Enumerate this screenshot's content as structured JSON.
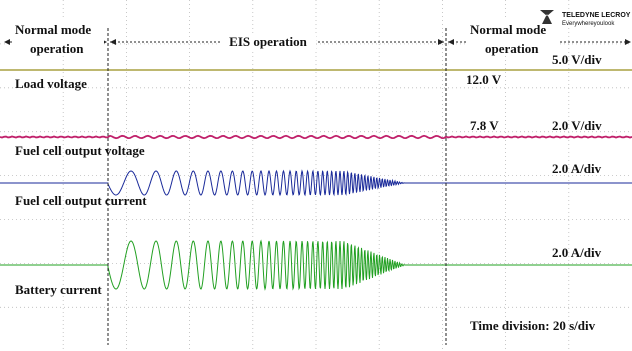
{
  "header": {
    "left_mode": [
      "Normal mode",
      "operation"
    ],
    "eis": "EIS operation",
    "right_mode": [
      "Normal mode",
      "operation"
    ]
  },
  "logo": {
    "brand": "TELEDYNE LECROY",
    "tagline": "Everywhereyoulook"
  },
  "channels": [
    {
      "label": "Load voltage",
      "scale": "5.0 V/div",
      "level": "12.0 V"
    },
    {
      "label": "Fuel cell output voltage",
      "scale": "2.0 V/div",
      "level": "7.8 V"
    },
    {
      "label": "Fuel cell output current",
      "scale": "2.0 A/div"
    },
    {
      "label": "Battery current",
      "scale": "2.0 A/div"
    }
  ],
  "time_division": "Time division: 20 s/div"
}
